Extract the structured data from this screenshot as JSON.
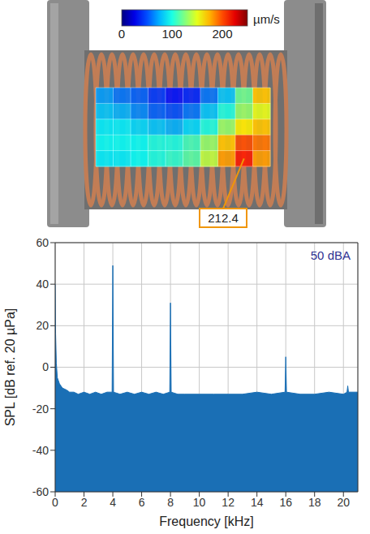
{
  "chart_data": [
    {
      "type": "heatmap",
      "cells": [
        [
          70,
          60,
          55,
          45,
          35,
          40,
          60,
          80,
          120,
          170
        ],
        [
          80,
          75,
          65,
          55,
          50,
          60,
          80,
          100,
          130,
          150
        ],
        [
          90,
          90,
          85,
          80,
          75,
          85,
          100,
          130,
          160,
          170
        ],
        [
          95,
          95,
          95,
          100,
          100,
          110,
          130,
          170,
          200,
          190
        ],
        [
          90,
          90,
          95,
          100,
          105,
          115,
          140,
          180,
          212.4,
          180
        ]
      ],
      "colorbar_range": [
        0,
        250
      ],
      "colorbar_ticks": [
        0,
        100,
        200
      ],
      "colorbar_label": "µm/s",
      "annotation": 212.4
    },
    {
      "type": "area",
      "x": [
        0,
        0.03,
        0.08,
        0.15,
        0.3,
        0.5,
        0.8,
        1.0,
        1.3,
        1.6,
        2.0,
        2.4,
        2.8,
        3.2,
        3.6,
        3.95,
        4.0,
        4.05,
        4.5,
        5.0,
        5.5,
        6.0,
        6.5,
        7.0,
        7.5,
        7.95,
        8.0,
        8.05,
        8.5,
        9,
        10,
        11,
        12,
        13,
        14,
        15,
        15.95,
        16.0,
        16.05,
        17,
        18,
        19,
        20,
        20.25,
        20.3,
        20.35,
        21
      ],
      "values": [
        40,
        16,
        2,
        -5,
        -8,
        -10,
        -11,
        -12,
        -12,
        -13,
        -12,
        -13,
        -12,
        -13,
        -12,
        -12,
        49,
        -12,
        -13,
        -12,
        -13,
        -12,
        -13,
        -12,
        -13,
        -12,
        31,
        -12,
        -13,
        -13,
        -13,
        -13,
        -13,
        -13,
        -12,
        -13,
        -12,
        5,
        -12,
        -13,
        -13,
        -12,
        -13,
        -12,
        -9,
        -12,
        -12
      ],
      "xlim": [
        0,
        21
      ],
      "xticks": [
        0,
        2,
        4,
        6,
        8,
        10,
        12,
        14,
        16,
        18,
        20
      ],
      "ylim": [
        -60,
        60
      ],
      "yticks": [
        -60,
        -40,
        -20,
        0,
        20,
        40,
        60
      ],
      "x_label": "Frequency [kHz]",
      "y_label": "SPL [dB ref. 20 µPa]",
      "annotation": "50 dBA",
      "color": "#1a6fb5",
      "grid": true
    }
  ]
}
